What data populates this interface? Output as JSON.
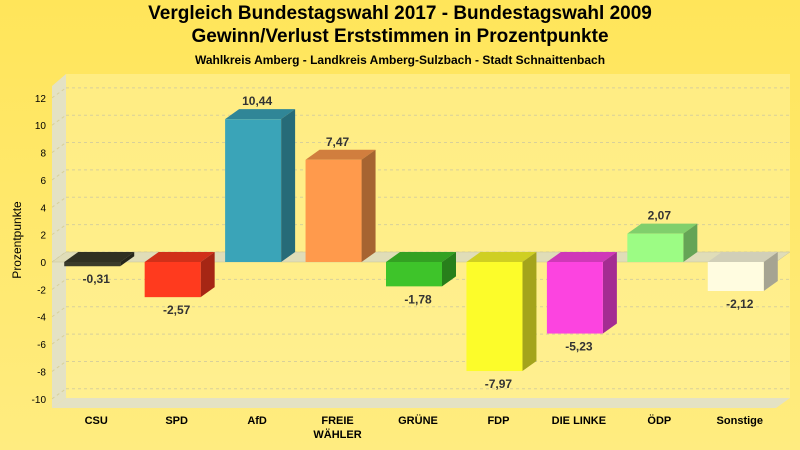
{
  "chart_data": {
    "type": "bar",
    "title": "Vergleich Bundestagswahl 2017 - Bundestagswahl 2009",
    "subtitle": "Gewinn/Verlust Erststimmen in Prozentpunkte",
    "caption": "Wahlkreis Amberg - Landkreis Amberg-Sulzbach - Stadt Schnaittenbach",
    "ylabel": "Prozentpunkte",
    "xlabel": "",
    "ylim": [
      -10,
      13
    ],
    "yticks": [
      12,
      10,
      8,
      6,
      4,
      2,
      0,
      -2,
      -4,
      -6,
      -8,
      -10
    ],
    "grid": true,
    "categories": [
      "CSU",
      "SPD",
      "AfD",
      "FREIE WÄHLER",
      "GRÜNE",
      "FDP",
      "DIE LINKE",
      "ÖDP",
      "Sonstige"
    ],
    "category_lines": [
      [
        "CSU"
      ],
      [
        "SPD"
      ],
      [
        "AfD"
      ],
      [
        "FREIE",
        "WÄHLER"
      ],
      [
        "GRÜNE"
      ],
      [
        "FDP"
      ],
      [
        "DIE LINKE"
      ],
      [
        "ÖDP"
      ],
      [
        "Sonstige"
      ]
    ],
    "values": [
      -0.31,
      -2.57,
      10.44,
      7.47,
      -1.78,
      -7.97,
      -5.23,
      2.07,
      -2.12
    ],
    "value_labels": [
      "-0,31",
      "-2,57",
      "10,44",
      "7,47",
      "-1,78",
      "-7,97",
      "-5,23",
      "2,07",
      "-2,12"
    ],
    "colors": [
      "#3a3a2a",
      "#ff3a1e",
      "#3aa4b8",
      "#ff9a4c",
      "#3ec42a",
      "#fcfc2a",
      "#fc44e0",
      "#9cfc84",
      "#fffce0"
    ]
  }
}
